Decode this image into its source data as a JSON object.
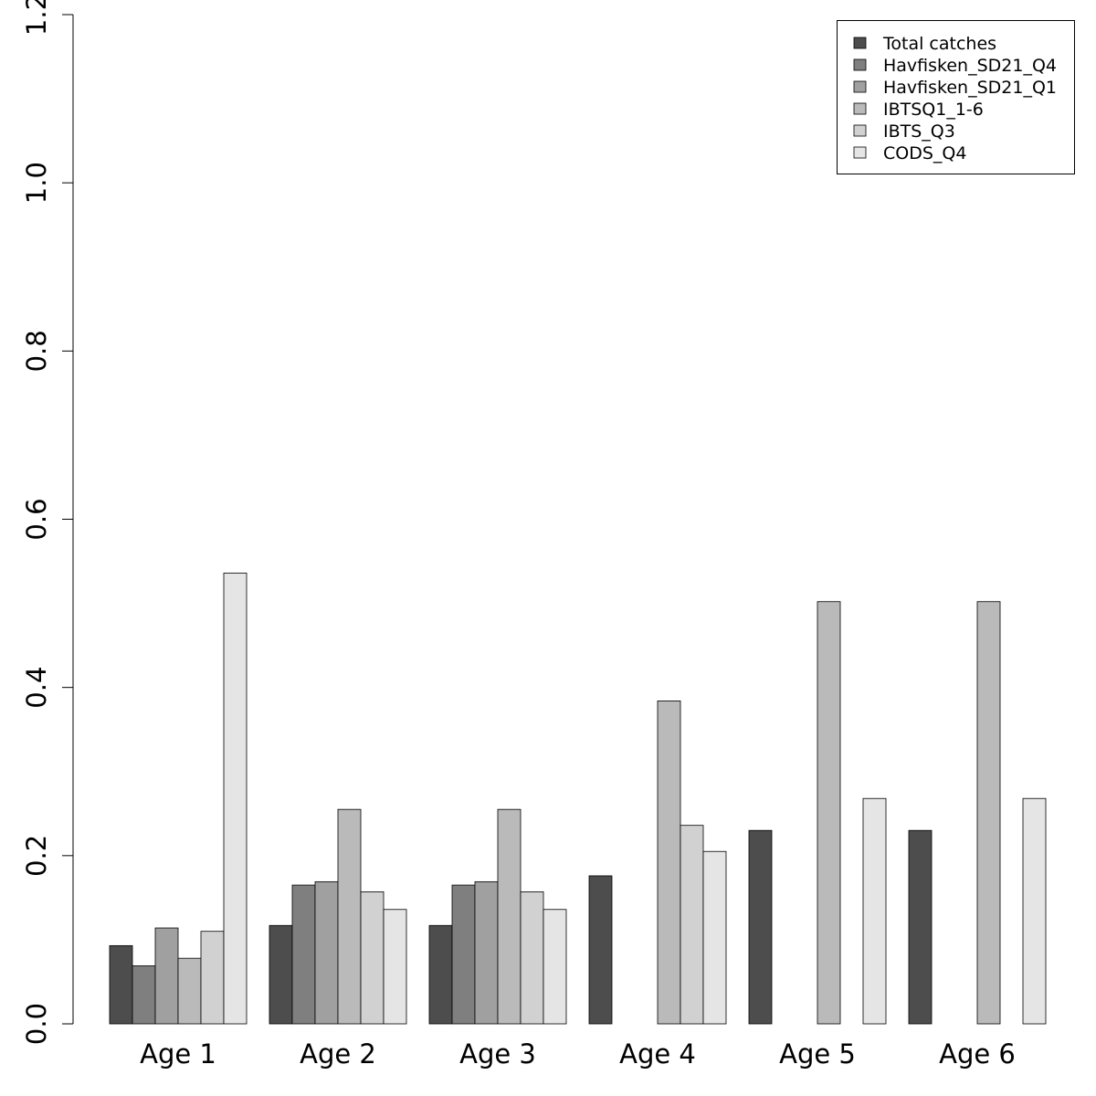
{
  "chart_data": {
    "type": "bar",
    "title": "",
    "xlabel": "",
    "ylabel": "",
    "ylim": [
      0,
      1.2
    ],
    "yticks": [
      "0.0",
      "0.2",
      "0.4",
      "0.6",
      "0.8",
      "1.0",
      "1.2"
    ],
    "grid": false,
    "legend_position": "top-right",
    "categories": [
      "Age 1",
      "Age 2",
      "Age 3",
      "Age 4",
      "Age 5",
      "Age 6"
    ],
    "series": [
      {
        "name": "Total catches",
        "color": "#4d4d4d",
        "values": [
          0.093,
          0.117,
          0.117,
          0.176,
          0.23,
          0.23
        ]
      },
      {
        "name": "Havfisken_SD21_Q4",
        "color": "#7f7f7f",
        "values": [
          0.069,
          0.165,
          0.165,
          0.0,
          0.0,
          0.0
        ]
      },
      {
        "name": "Havfisken_SD21_Q1",
        "color": "#a0a0a0",
        "values": [
          0.114,
          0.169,
          0.169,
          0.0,
          0.0,
          0.0
        ]
      },
      {
        "name": "IBTSQ1_1-6",
        "color": "#bababa",
        "values": [
          0.078,
          0.255,
          0.255,
          0.384,
          0.502,
          0.502
        ]
      },
      {
        "name": "IBTS_Q3",
        "color": "#d1d1d1",
        "values": [
          0.11,
          0.157,
          0.157,
          0.236,
          0.0,
          0.0
        ]
      },
      {
        "name": "CODS_Q4",
        "color": "#e5e5e5",
        "values": [
          0.536,
          0.136,
          0.136,
          0.205,
          0.268,
          0.268
        ]
      }
    ]
  }
}
